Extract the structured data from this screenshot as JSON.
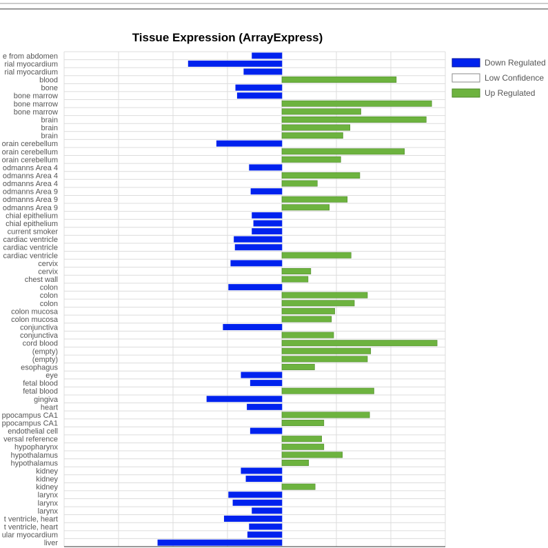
{
  "colors": {
    "down": "#0022ee",
    "up": "#6db33f",
    "up_stroke": "#4e8a2a",
    "low_conf_fill": "#ffffff",
    "low_conf_stroke": "#888888"
  },
  "chart_data": {
    "type": "bar",
    "orientation": "horizontal",
    "title": "Tissue Expression (ArrayExpress)",
    "xlabel": "",
    "ylabel": "",
    "xlim": [
      -6,
      3
    ],
    "grid": true,
    "legend_position": "top-right",
    "legend": [
      {
        "key": "down",
        "label": "Down Regulated"
      },
      {
        "key": "low",
        "label": "Low Confidence"
      },
      {
        "key": "up",
        "label": "Up Regulated"
      }
    ],
    "categories": [
      "e from abdomen",
      "rial myocardium",
      "rial myocardium",
      "blood",
      "bone",
      "bone marrow",
      "bone marrow",
      "bone marrow",
      "brain",
      "brain",
      "brain",
      "orain cerebellum",
      "orain cerebellum",
      "orain cerebellum",
      "odmanns Area 4",
      "odmanns Area 4",
      "odmanns Area 4",
      "odmanns Area 9",
      "odmanns Area 9",
      "odmanns Area 9",
      "chial epithelium",
      "chial epithelium",
      "current smoker",
      "cardiac ventricle",
      "cardiac ventricle",
      "cardiac ventricle",
      "cervix",
      "cervix",
      "chest wall",
      "colon",
      "colon",
      "colon",
      "colon mucosa",
      "colon mucosa",
      "conjunctiva",
      "conjunctiva",
      "cord blood",
      "(empty)",
      "(empty)",
      "esophagus",
      "eye",
      "fetal blood",
      "fetal blood",
      "gingiva",
      "heart",
      "ppocampus CA1",
      "ppocampus CA1",
      "endothelial cell",
      "versal reference",
      "hypopharynx",
      "hypothalamus",
      "hypothalamus",
      "kidney",
      "kidney",
      "kidney",
      "larynx",
      "larynx",
      "larynx",
      "t ventricle, heart",
      "t ventricle, heart",
      "ular myocardium",
      "liver"
    ],
    "values": [
      -0.55,
      -1.72,
      -0.7,
      2.1,
      -0.85,
      -0.82,
      2.75,
      1.45,
      2.65,
      1.25,
      1.12,
      -1.2,
      2.25,
      1.08,
      -0.6,
      1.43,
      0.65,
      -0.57,
      1.2,
      0.87,
      -0.55,
      -0.52,
      -0.55,
      -0.88,
      -0.86,
      1.27,
      -0.94,
      0.53,
      0.48,
      -0.98,
      1.57,
      1.33,
      0.97,
      0.91,
      -1.08,
      0.95,
      2.85,
      1.63,
      1.57,
      0.6,
      -0.75,
      -0.58,
      1.69,
      -1.38,
      -0.64,
      1.61,
      0.77,
      -0.58,
      0.73,
      0.77,
      1.11,
      0.49,
      -0.75,
      -0.66,
      0.61,
      -0.98,
      -0.9,
      -0.55,
      -1.06,
      -0.6,
      -0.63,
      -2.28
    ]
  }
}
